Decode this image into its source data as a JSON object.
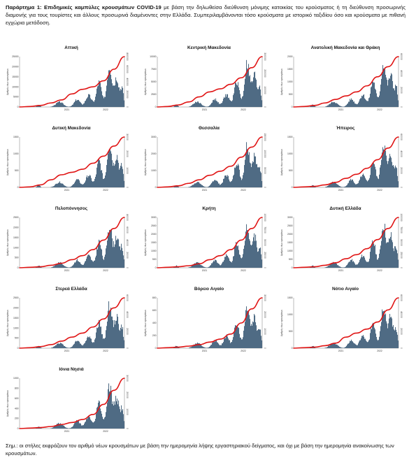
{
  "caption": {
    "lead": "Παράρτημα 1: Επιδημικές καμπύλες κρουσμάτων COVID-19",
    "rest": " με βάση την δηλωθείσα διεύθυνση μόνιμης κατοικίας του κρούσματος ή τη διεύθυνση προσωρινής διαμονής για τους τουρίστες και άλλους προσωρινά διαμένοντες στην Ελλάδα. Συμπεριλαμβάνονται τόσο κρούσματα με ιστορικό ταξιδίου όσο και κρούσματα με πιθανή εγχώρια μετάδοση."
  },
  "note": "Σημ.: οι στήλες εκφράζουν τον αριθμό νέων κρουσμάτων με βάση την ημερομηνία λήψης εργαστηριακού δείγματος, και όχι με βάση την ημερομηνία ανακοίνωσης των κρουσμάτων.",
  "colors": {
    "bars": "#4f6b84",
    "line": "#e01414"
  },
  "axes": {
    "x_ticks": [
      "2021",
      "2022"
    ],
    "ylabel": "Αριθμός νέων κρουσμάτων"
  },
  "chart_data": [
    {
      "type": "bar",
      "title": "Αττική",
      "left_ticks": [
        "0",
        "5000",
        "10000",
        "15000",
        "20000",
        "25000"
      ],
      "right_ticks": [
        "0",
        "200000",
        "400000",
        "600000",
        "800000"
      ],
      "end_label": "",
      "mid_labels": [],
      "peak": 0.95,
      "bars_scale": 1.0,
      "line_profile": [
        0.0,
        0.01,
        0.03,
        0.08,
        0.14,
        0.26,
        0.35,
        0.4,
        0.52,
        0.75,
        1.0
      ]
    },
    {
      "type": "bar",
      "title": "Κεντρική Μακεδονία",
      "left_ticks": [
        "0",
        "2500",
        "5000",
        "7500",
        "10000"
      ],
      "right_ticks": [
        "0",
        "100000",
        "200000",
        "300000"
      ],
      "end_label": "",
      "mid_labels": [],
      "peak": 1.0,
      "bars_scale": 1.0,
      "line_profile": [
        0.0,
        0.01,
        0.04,
        0.1,
        0.2,
        0.3,
        0.36,
        0.45,
        0.58,
        0.78,
        1.0
      ]
    },
    {
      "type": "bar",
      "title": "Ανατολική Μακεδονία και Θράκη",
      "left_ticks": [
        "0",
        "500",
        "1000",
        "1500",
        "2000"
      ],
      "right_ticks": [
        "0",
        "20000",
        "40000",
        "60000"
      ],
      "end_label": "",
      "mid_labels": [],
      "peak": 1.0,
      "bars_scale": 1.0,
      "line_profile": [
        0.0,
        0.01,
        0.03,
        0.08,
        0.15,
        0.22,
        0.3,
        0.42,
        0.6,
        0.8,
        1.0
      ]
    },
    {
      "type": "bar",
      "title": "Δυτική Μακεδονία",
      "left_ticks": [
        "0",
        "500",
        "1000",
        "1500"
      ],
      "right_ticks": [
        "0",
        "10000",
        "20000",
        "30000"
      ],
      "end_label": "",
      "mid_labels": [],
      "peak": 1.0,
      "bars_scale": 1.0,
      "line_profile": [
        0.0,
        0.01,
        0.05,
        0.15,
        0.25,
        0.3,
        0.36,
        0.48,
        0.62,
        0.82,
        1.0
      ]
    },
    {
      "type": "bar",
      "title": "Θεσσαλία",
      "left_ticks": [
        "0",
        "1000",
        "2000",
        "3000"
      ],
      "right_ticks": [
        "0",
        "50000",
        "100000",
        "150000"
      ],
      "end_label": "",
      "mid_labels": [],
      "peak": 1.0,
      "bars_scale": 1.0,
      "line_profile": [
        0.0,
        0.01,
        0.03,
        0.08,
        0.15,
        0.24,
        0.32,
        0.42,
        0.6,
        0.8,
        1.0
      ]
    },
    {
      "type": "bar",
      "title": "Ήπειρος",
      "left_ticks": [
        "0",
        "500",
        "1000",
        "1500"
      ],
      "right_ticks": [
        "0",
        "20000",
        "40000",
        "60000"
      ],
      "end_label": "",
      "mid_labels": [],
      "peak": 1.0,
      "bars_scale": 1.0,
      "line_profile": [
        0.0,
        0.01,
        0.02,
        0.05,
        0.1,
        0.18,
        0.26,
        0.38,
        0.55,
        0.78,
        1.0
      ]
    },
    {
      "type": "bar",
      "title": "Πελοπόννησος",
      "left_ticks": [
        "0",
        "500",
        "1000",
        "1500",
        "2000",
        "2500"
      ],
      "right_ticks": [
        "0",
        "20000",
        "40000",
        "60000",
        "80000"
      ],
      "end_label": "",
      "mid_labels": [],
      "peak": 1.0,
      "bars_scale": 1.0,
      "line_profile": [
        0.0,
        0.01,
        0.02,
        0.05,
        0.09,
        0.16,
        0.24,
        0.36,
        0.55,
        0.78,
        1.0
      ]
    },
    {
      "type": "bar",
      "title": "Κρήτη",
      "left_ticks": [
        "0",
        "500",
        "1000",
        "1500",
        "2000",
        "2500",
        "3000"
      ],
      "right_ticks": [
        "0",
        "25000",
        "50000",
        "75000",
        "100000"
      ],
      "end_label": "",
      "mid_labels": [],
      "peak": 1.0,
      "bars_scale": 1.0,
      "line_profile": [
        0.0,
        0.01,
        0.02,
        0.04,
        0.08,
        0.16,
        0.24,
        0.36,
        0.55,
        0.78,
        1.0
      ]
    },
    {
      "type": "bar",
      "title": "Δυτική Ελλάδα",
      "left_ticks": [
        "0",
        "500",
        "1000",
        "1500",
        "2000",
        "2500",
        "3000"
      ],
      "right_ticks": [
        "0",
        "25000",
        "50000",
        "75000",
        "100000"
      ],
      "end_label": "",
      "mid_labels": [],
      "peak": 1.0,
      "bars_scale": 1.0,
      "line_profile": [
        0.0,
        0.01,
        0.02,
        0.05,
        0.1,
        0.18,
        0.26,
        0.38,
        0.56,
        0.78,
        1.0
      ]
    },
    {
      "type": "bar",
      "title": "Στερεά Ελλάδα",
      "left_ticks": [
        "0",
        "500",
        "1000",
        "1500",
        "2000",
        "2500"
      ],
      "right_ticks": [
        "0",
        "20000",
        "40000",
        "60000"
      ],
      "end_label": "",
      "mid_labels": [],
      "peak": 1.0,
      "bars_scale": 1.0,
      "line_profile": [
        0.0,
        0.01,
        0.03,
        0.07,
        0.14,
        0.22,
        0.3,
        0.42,
        0.58,
        0.8,
        1.0
      ]
    },
    {
      "type": "bar",
      "title": "Βόρειο Αιγαίο",
      "left_ticks": [
        "0",
        "200",
        "400",
        "600",
        "800"
      ],
      "right_ticks": [
        "0",
        "10000",
        "20000",
        "30000"
      ],
      "end_label": "",
      "mid_labels": [],
      "peak": 1.0,
      "bars_scale": 1.0,
      "line_profile": [
        0.0,
        0.01,
        0.02,
        0.04,
        0.07,
        0.12,
        0.18,
        0.28,
        0.5,
        0.78,
        1.0
      ]
    },
    {
      "type": "bar",
      "title": "Νότιο Αιγαίο",
      "left_ticks": [
        "0",
        "500",
        "1000",
        "1500"
      ],
      "right_ticks": [
        "0",
        "20000",
        "40000",
        "60000"
      ],
      "end_label": "",
      "mid_labels": [],
      "peak": 1.0,
      "bars_scale": 1.0,
      "line_profile": [
        0.0,
        0.01,
        0.02,
        0.05,
        0.1,
        0.22,
        0.3,
        0.38,
        0.52,
        0.76,
        1.0
      ]
    },
    {
      "type": "bar",
      "title": "Ιόνια Νησιά",
      "left_ticks": [
        "0",
        "200",
        "400",
        "600",
        "800",
        "1000"
      ],
      "right_ticks": [
        "0",
        "10000",
        "20000",
        "30000"
      ],
      "end_label": "",
      "mid_labels": [],
      "peak": 1.0,
      "bars_scale": 1.0,
      "line_profile": [
        0.0,
        0.01,
        0.02,
        0.04,
        0.08,
        0.12,
        0.18,
        0.28,
        0.48,
        0.76,
        1.0
      ]
    }
  ]
}
